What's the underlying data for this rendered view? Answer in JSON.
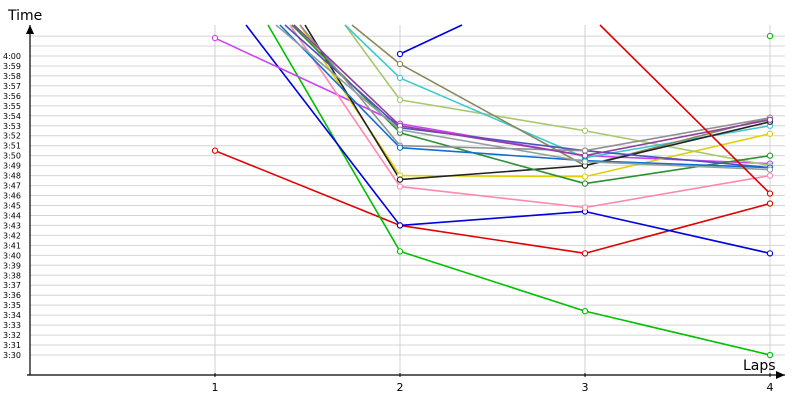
{
  "chart_data": {
    "type": "line",
    "xlabel": "Laps",
    "ylabel": "Time",
    "x": [
      1,
      2,
      3,
      4
    ],
    "xlim": [
      0,
      4
    ],
    "ylim": [
      "3:28",
      "4:02"
    ],
    "grid": true,
    "x_ticks": [
      "1",
      "2",
      "3",
      "4"
    ],
    "y_ticks": [
      "3:30",
      "3:31",
      "3:32",
      "3:33",
      "3:34",
      "3:35",
      "3:36",
      "3:37",
      "3:38",
      "3:39",
      "3:40",
      "3:41",
      "3:42",
      "3:43",
      "3:44",
      "3:45",
      "3:46",
      "3:47",
      "3:48",
      "3:49",
      "3:50",
      "3:51",
      "3:52",
      "3:53",
      "3:54",
      "3:55",
      "3:56",
      "3:57",
      "3:58",
      "3:59",
      "4:00"
    ],
    "series": [
      {
        "color": "#e00000",
        "values": [
          "3:50.5",
          "3:43.0",
          "3:40.2",
          "3:45.2"
        ]
      },
      {
        "color": "#00c000",
        "values": [
          null,
          "3:40.4",
          "3:34.4",
          "3:30.0"
        ]
      },
      {
        "color": "#0000e0",
        "values": [
          null,
          "3:43.0",
          "3:44.4",
          "3:40.2"
        ]
      },
      {
        "color": "#cc44ee",
        "values": [
          "4:01.8",
          "3:53.2",
          "3:50.0",
          "3:49.2"
        ]
      },
      {
        "color": "#ff88b0",
        "values": [
          null,
          "3:46.9",
          "3:44.8",
          "3:48.0"
        ]
      },
      {
        "color": "#e0d000",
        "values": [
          null,
          "3:48.0",
          "3:47.9",
          "3:52.2"
        ]
      },
      {
        "color": "#a8c870",
        "values": [
          null,
          "3:55.6",
          "3:52.5",
          "3:49.0"
        ]
      },
      {
        "color": "#40c8d0",
        "values": [
          null,
          "3:57.8",
          "3:49.8",
          "3:53.0"
        ]
      },
      {
        "color": "#888860",
        "values": [
          null,
          "3:59.2",
          "3:49.0",
          "3:53.8"
        ]
      },
      {
        "color": "#222222",
        "values": [
          null,
          "3:47.6",
          "3:49.0",
          "3:53.4"
        ]
      },
      {
        "color": "#2a9030",
        "values": [
          null,
          "3:52.3",
          "3:47.2",
          "3:50.0"
        ]
      },
      {
        "color": "#5050c0",
        "values": [
          null,
          "3:52.8",
          "3:50.5",
          "3:48.8"
        ]
      },
      {
        "color": "#909090",
        "values": [
          null,
          "3:51.0",
          "3:50.5",
          "3:53.8"
        ]
      },
      {
        "color": "#9040a0",
        "values": [
          null,
          "3:53.0",
          "3:50.0",
          "3:53.6"
        ]
      },
      {
        "color": "#1070d0",
        "values": [
          null,
          "3:50.8",
          "3:49.5",
          "3:48.8"
        ]
      },
      {
        "color": "#90a0a0",
        "values": [
          null,
          "3:52.6",
          "3:49.4",
          "3:48.6"
        ]
      }
    ],
    "offchart": [
      {
        "from": {
          "color": "#0000e0",
          "x": 2,
          "y": "4:00.2"
        },
        "dir": "up-right"
      },
      {
        "from": {
          "color": "#e00000",
          "x": 4,
          "y": "3:46.2"
        },
        "dir": "up-left"
      },
      {
        "from": {
          "color": "#00c000",
          "x": 4,
          "y": "4:02.0"
        },
        "dir": "none"
      }
    ]
  }
}
